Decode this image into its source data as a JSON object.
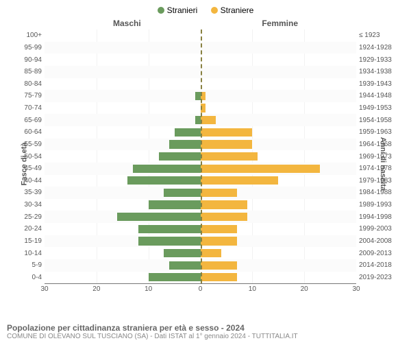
{
  "legend": {
    "male": {
      "label": "Stranieri",
      "color": "#6a9b5d"
    },
    "female": {
      "label": "Straniere",
      "color": "#f3b63f"
    }
  },
  "side_titles": {
    "left": "Maschi",
    "right": "Femmine"
  },
  "axis_labels": {
    "left": "Fasce di età",
    "right": "Anni di nascita"
  },
  "chart": {
    "type": "population-pyramid",
    "xmax": 30,
    "xticks": [
      30,
      20,
      10,
      0,
      10,
      20,
      30
    ],
    "bar_colors": {
      "male": "#6a9b5d",
      "female": "#f3b63f"
    },
    "background_color": "#ffffff",
    "grid_color": "#f2f2f2",
    "centerline_color": "#888040",
    "bar_height_ratio": 0.7,
    "rows": [
      {
        "age": "100+",
        "birth": "≤ 1923",
        "m": 0,
        "f": 0
      },
      {
        "age": "95-99",
        "birth": "1924-1928",
        "m": 0,
        "f": 0
      },
      {
        "age": "90-94",
        "birth": "1929-1933",
        "m": 0,
        "f": 0
      },
      {
        "age": "85-89",
        "birth": "1934-1938",
        "m": 0,
        "f": 0
      },
      {
        "age": "80-84",
        "birth": "1939-1943",
        "m": 0,
        "f": 0
      },
      {
        "age": "75-79",
        "birth": "1944-1948",
        "m": 1,
        "f": 1
      },
      {
        "age": "70-74",
        "birth": "1949-1953",
        "m": 0,
        "f": 1
      },
      {
        "age": "65-69",
        "birth": "1954-1958",
        "m": 1,
        "f": 3
      },
      {
        "age": "60-64",
        "birth": "1959-1963",
        "m": 5,
        "f": 10
      },
      {
        "age": "55-59",
        "birth": "1964-1968",
        "m": 6,
        "f": 10
      },
      {
        "age": "50-54",
        "birth": "1969-1973",
        "m": 8,
        "f": 11
      },
      {
        "age": "45-49",
        "birth": "1974-1978",
        "m": 13,
        "f": 23
      },
      {
        "age": "40-44",
        "birth": "1979-1983",
        "m": 14,
        "f": 15
      },
      {
        "age": "35-39",
        "birth": "1984-1988",
        "m": 7,
        "f": 7
      },
      {
        "age": "30-34",
        "birth": "1989-1993",
        "m": 10,
        "f": 9
      },
      {
        "age": "25-29",
        "birth": "1994-1998",
        "m": 16,
        "f": 9
      },
      {
        "age": "20-24",
        "birth": "1999-2003",
        "m": 12,
        "f": 7
      },
      {
        "age": "15-19",
        "birth": "2004-2008",
        "m": 12,
        "f": 7
      },
      {
        "age": "10-14",
        "birth": "2009-2013",
        "m": 7,
        "f": 4
      },
      {
        "age": "5-9",
        "birth": "2014-2018",
        "m": 6,
        "f": 7
      },
      {
        "age": "0-4",
        "birth": "2019-2023",
        "m": 10,
        "f": 7
      }
    ]
  },
  "footer": {
    "title": "Popolazione per cittadinanza straniera per età e sesso - 2024",
    "sub": "COMUNE DI OLEVANO SUL TUSCIANO (SA) - Dati ISTAT al 1° gennaio 2024 - TUTTITALIA.IT"
  }
}
